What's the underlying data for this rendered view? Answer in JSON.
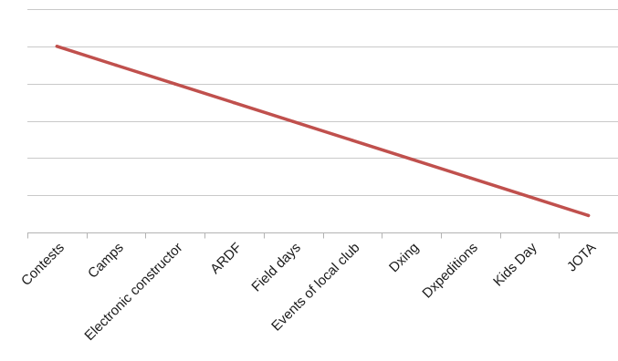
{
  "chart_data": {
    "type": "line",
    "categories": [
      "Contests",
      "Camps",
      "Electronic constructor",
      "ARDF",
      "Field days",
      "Events of local club",
      "Dxing",
      "Dxpeditions",
      "Kids Day",
      "JOTA"
    ],
    "series": [
      {
        "values": [
          100,
          89.9,
          79.8,
          69.7,
          59.6,
          49.5,
          39.4,
          29.3,
          19.2,
          9.1
        ],
        "color": "#c0504d"
      }
    ],
    "ylim": [
      0,
      120
    ],
    "y_grid_step": 20,
    "grid": true,
    "gridline_color": "#c9c9c9",
    "axis_color": "#b3b3b3",
    "title": "",
    "xlabel": "",
    "ylabel": "",
    "y_tick_labels_shown": false,
    "legend": "none"
  }
}
